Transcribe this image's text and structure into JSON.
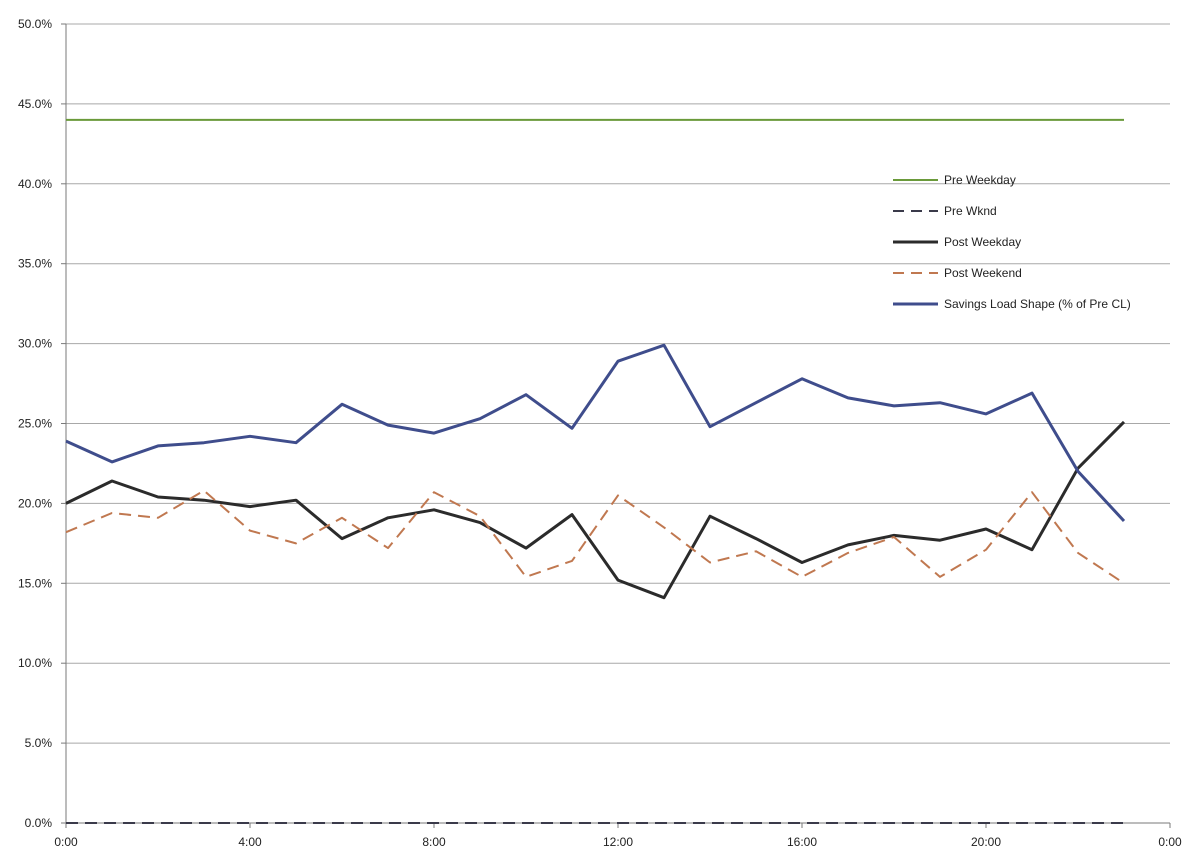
{
  "chart_data": {
    "type": "line",
    "title": "",
    "xlabel": "",
    "ylabel": "",
    "x": [
      "0:00",
      "1:00",
      "2:00",
      "3:00",
      "4:00",
      "5:00",
      "6:00",
      "7:00",
      "8:00",
      "9:00",
      "10:00",
      "11:00",
      "12:00",
      "13:00",
      "14:00",
      "15:00",
      "16:00",
      "17:00",
      "18:00",
      "19:00",
      "20:00",
      "21:00",
      "22:00",
      "23:00"
    ],
    "x_ticks": [
      "0:00",
      "4:00",
      "8:00",
      "12:00",
      "16:00",
      "20:00",
      "0:00"
    ],
    "y_ticks": [
      "0.0%",
      "5.0%",
      "10.0%",
      "15.0%",
      "20.0%",
      "25.0%",
      "30.0%",
      "35.0%",
      "40.0%",
      "45.0%",
      "50.0%"
    ],
    "ylim": [
      0,
      50
    ],
    "y_unit": "%",
    "grid": true,
    "legend_position": "right",
    "series": [
      {
        "name": "Pre Weekday",
        "color": "#6a9a3a",
        "dash": "solid",
        "values": [
          44,
          44,
          44,
          44,
          44,
          44,
          44,
          44,
          44,
          44,
          44,
          44,
          44,
          44,
          44,
          44,
          44,
          44,
          44,
          44,
          44,
          44,
          44,
          44
        ]
      },
      {
        "name": "Pre Wknd",
        "color": "#3a3a4a",
        "dash": "dashed",
        "values": [
          0,
          0,
          0,
          0,
          0,
          0,
          0,
          0,
          0,
          0,
          0,
          0,
          0,
          0,
          0,
          0,
          0,
          0,
          0,
          0,
          0,
          0,
          0,
          0
        ]
      },
      {
        "name": "Post Weekday",
        "color": "#2b2b2b",
        "dash": "solid",
        "values": [
          20.0,
          21.4,
          20.4,
          20.2,
          19.8,
          20.2,
          17.8,
          19.1,
          19.6,
          18.8,
          17.2,
          19.3,
          15.2,
          14.1,
          19.2,
          17.8,
          16.3,
          17.4,
          18.0,
          17.7,
          18.4,
          17.1,
          22.2,
          25.1
        ]
      },
      {
        "name": "Post Weekend",
        "color": "#c07850",
        "dash": "dashed",
        "values": [
          18.2,
          19.4,
          19.1,
          20.8,
          18.3,
          17.5,
          19.1,
          17.2,
          20.7,
          19.2,
          15.4,
          16.4,
          20.5,
          18.5,
          16.3,
          17.0,
          15.4,
          16.9,
          17.9,
          15.4,
          17.1,
          20.7,
          16.9,
          15.0
        ]
      },
      {
        "name": "Savings Load Shape (% of Pre CL)",
        "color": "#3f4d8c",
        "dash": "solid",
        "values": [
          23.9,
          22.6,
          23.6,
          23.8,
          24.2,
          23.8,
          26.2,
          24.9,
          24.4,
          25.3,
          26.8,
          24.7,
          28.9,
          29.9,
          24.8,
          26.3,
          27.8,
          26.6,
          26.1,
          26.3,
          25.6,
          26.9,
          22.0,
          18.9
        ]
      }
    ]
  }
}
